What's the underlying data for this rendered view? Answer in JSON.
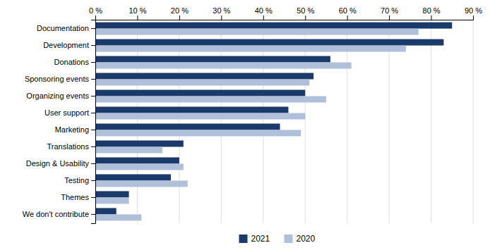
{
  "chart_data": {
    "type": "bar",
    "orientation": "horizontal",
    "categories": [
      "Documentation",
      "Development",
      "Donations",
      "Sponsoring events",
      "Organizing events",
      "User support",
      "Marketing",
      "Translations",
      "Design & Usability",
      "Testing",
      "Themes",
      "We don't contribute"
    ],
    "series": [
      {
        "name": "2021",
        "color": "#1a3a6b",
        "values": [
          85,
          83,
          56,
          52,
          50,
          46,
          44,
          21,
          20,
          18,
          8,
          5
        ]
      },
      {
        "name": "2020",
        "color": "#b0bfda",
        "values": [
          77,
          74,
          61,
          51,
          55,
          50,
          49,
          16,
          21,
          22,
          8,
          11
        ]
      }
    ],
    "xlim": [
      0,
      90
    ],
    "xticks": [
      {
        "value": 0,
        "label": "0 %"
      },
      {
        "value": 10,
        "label": "10 %"
      },
      {
        "value": 20,
        "label": "20 %"
      },
      {
        "value": 30,
        "label": "30 %"
      },
      {
        "value": 40,
        "label": "40 %"
      },
      {
        "value": 50,
        "label": "50 %"
      },
      {
        "value": 60,
        "label": "60 %"
      },
      {
        "value": 70,
        "label": "70 %"
      },
      {
        "value": 80,
        "label": "80 %"
      },
      {
        "value": 90,
        "label": "90 %"
      }
    ],
    "grid": true,
    "legend": "bottom"
  }
}
